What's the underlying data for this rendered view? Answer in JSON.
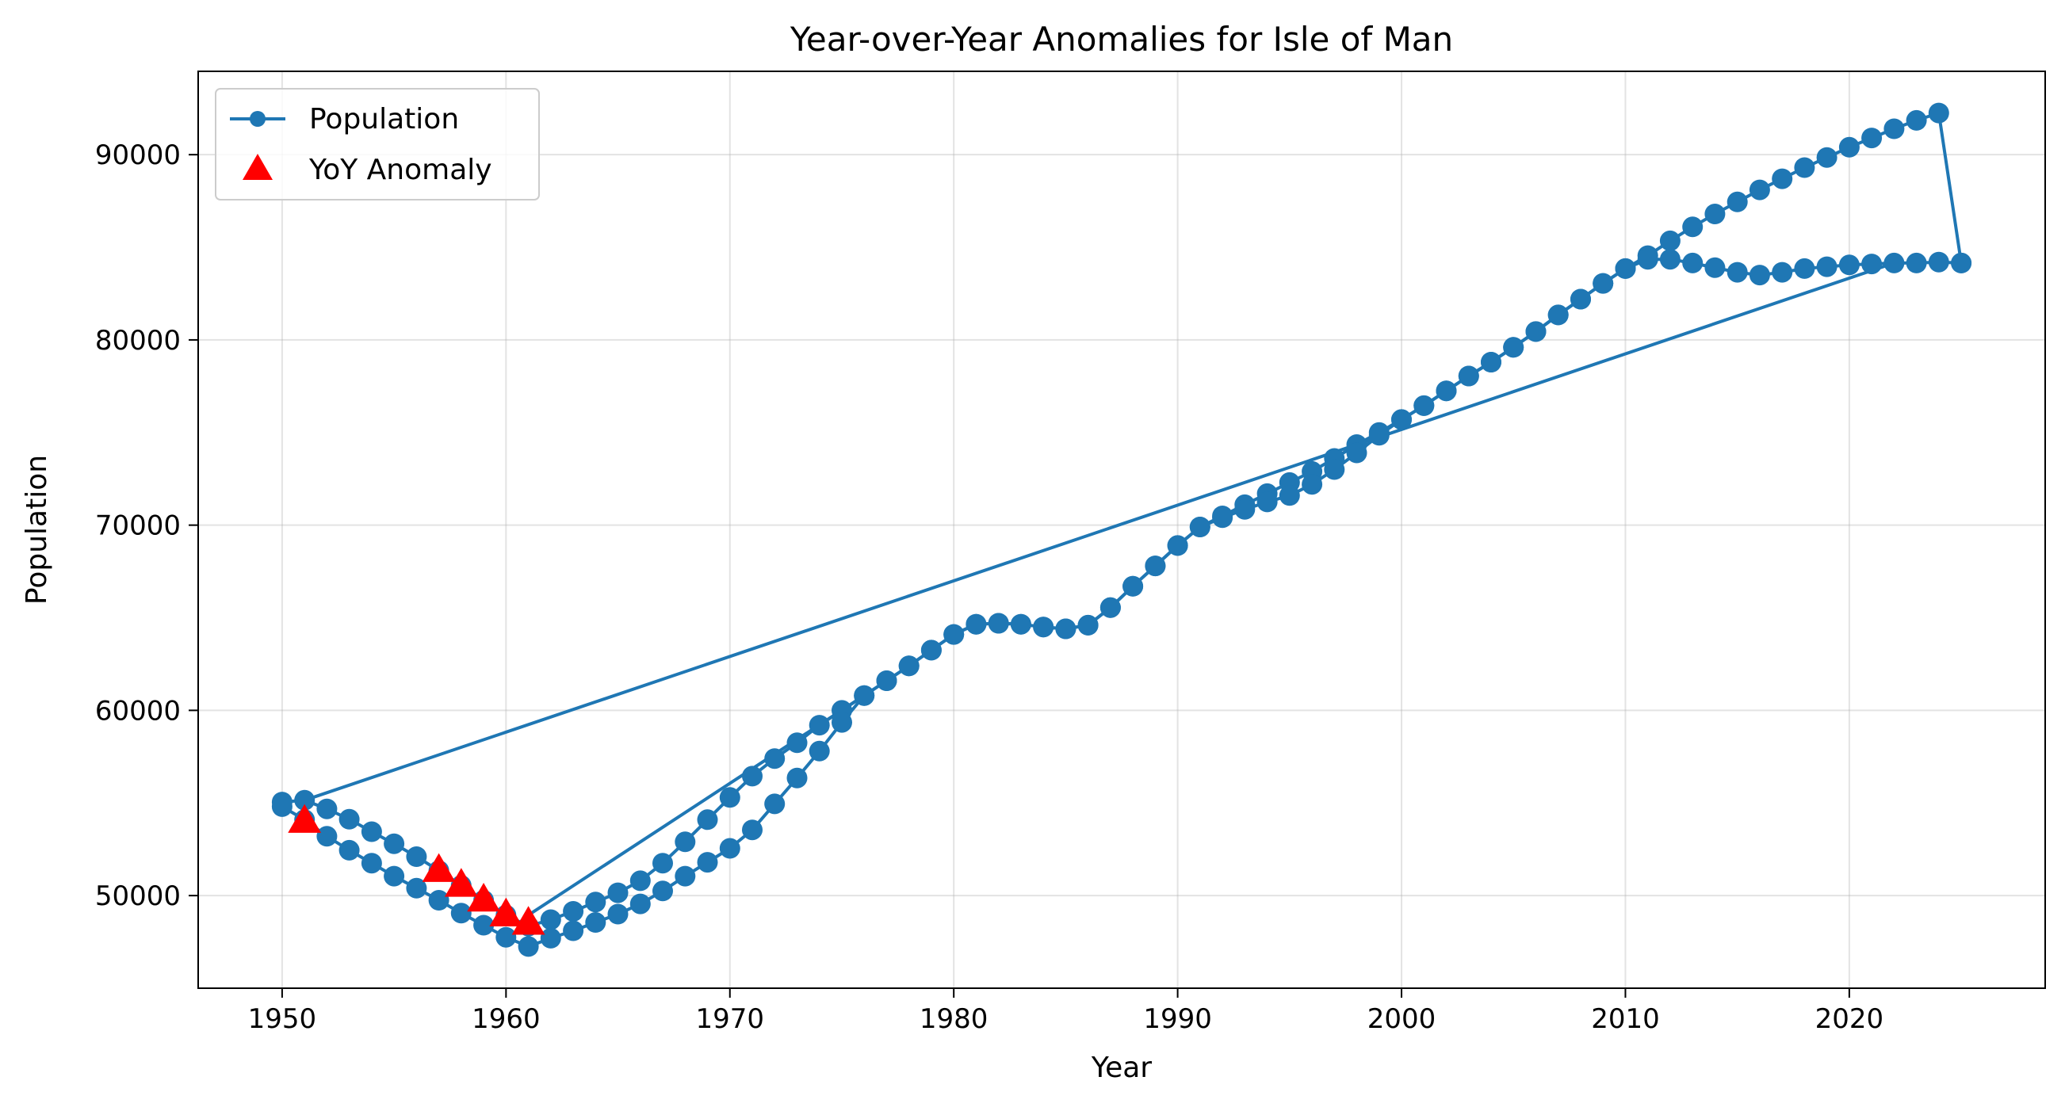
{
  "chart_data": {
    "type": "line",
    "title": "Year-over-Year Anomalies for Isle of Man",
    "xlabel": "Year",
    "ylabel": "Population",
    "xlim": [
      1946.25,
      2028.75
    ],
    "ylim": [
      45000,
      94500
    ],
    "xticks": [
      1950,
      1960,
      1970,
      1980,
      1990,
      2000,
      2010,
      2020
    ],
    "yticks": [
      50000,
      60000,
      70000,
      80000,
      90000
    ],
    "grid": true,
    "legend_position": "top-left",
    "colors": {
      "line": "#1f77b4",
      "anomaly": "#ff0000"
    },
    "series": [
      {
        "name": "Population",
        "marker": "circle",
        "segments": [
          [
            [
              1950,
              55050
            ],
            [
              1951,
              55150
            ],
            [
              1952,
              54680
            ],
            [
              1953,
              54120
            ],
            [
              1954,
              53450
            ],
            [
              1955,
              52800
            ],
            [
              1956,
              52100
            ],
            [
              1957,
              51350
            ],
            [
              1958,
              50550
            ],
            [
              1959,
              49750
            ],
            [
              1960,
              48950
            ],
            [
              1961,
              48350
            ],
            [
              1962,
              48700
            ],
            [
              1963,
              49150
            ],
            [
              1964,
              49650
            ],
            [
              1965,
              50150
            ],
            [
              1966,
              50800
            ],
            [
              1967,
              51750
            ],
            [
              1968,
              52900
            ],
            [
              1969,
              54100
            ],
            [
              1970,
              55300
            ],
            [
              1971,
              56450
            ],
            [
              1972,
              57400
            ],
            [
              1973,
              58250
            ],
            [
              1974,
              59200
            ],
            [
              1975,
              60000
            ],
            [
              1976,
              60800
            ],
            [
              1977,
              61600
            ],
            [
              1978,
              62400
            ],
            [
              1979,
              63250
            ],
            [
              1980,
              64100
            ],
            [
              1981,
              64650
            ],
            [
              1982,
              64700
            ],
            [
              1983,
              64650
            ],
            [
              1984,
              64500
            ],
            [
              1985,
              64400
            ],
            [
              1986,
              64600
            ],
            [
              1987,
              65550
            ],
            [
              1988,
              66700
            ],
            [
              1989,
              67800
            ],
            [
              1990,
              68900
            ],
            [
              1991,
              69900
            ],
            [
              1992,
              70500
            ],
            [
              1993,
              71100
            ],
            [
              1994,
              71700
            ],
            [
              1995,
              72300
            ],
            [
              1996,
              72900
            ],
            [
              1997,
              73600
            ],
            [
              1998,
              74350
            ],
            [
              1999,
              75000
            ],
            [
              2000,
              75700
            ],
            [
              2001,
              76450
            ],
            [
              2002,
              77250
            ],
            [
              2003,
              78050
            ],
            [
              2004,
              78800
            ],
            [
              2005,
              79600
            ],
            [
              2006,
              80450
            ],
            [
              2007,
              81350
            ],
            [
              2008,
              82200
            ],
            [
              2009,
              83050
            ],
            [
              2010,
              83850
            ],
            [
              2011,
              84550
            ],
            [
              2012,
              85350
            ],
            [
              2013,
              86100
            ],
            [
              2014,
              86800
            ],
            [
              2015,
              87450
            ],
            [
              2016,
              88100
            ],
            [
              2017,
              88700
            ],
            [
              2018,
              89300
            ],
            [
              2019,
              89850
            ],
            [
              2020,
              90400
            ],
            [
              2021,
              90900
            ],
            [
              2022,
              91400
            ],
            [
              2023,
              91850
            ],
            [
              2024,
              92250
            ],
            [
              2025,
              84150
            ]
          ],
          [
            [
              1950,
              54800
            ],
            [
              1951,
              54100
            ],
            [
              1952,
              53200
            ],
            [
              1953,
              52450
            ],
            [
              1954,
              51750
            ],
            [
              1955,
              51050
            ],
            [
              1956,
              50400
            ],
            [
              1957,
              49750
            ],
            [
              1958,
              49050
            ],
            [
              1959,
              48400
            ],
            [
              1960,
              47750
            ],
            [
              1961,
              47250
            ],
            [
              1962,
              47700
            ],
            [
              1963,
              48100
            ],
            [
              1964,
              48550
            ],
            [
              1965,
              49000
            ],
            [
              1966,
              49550
            ],
            [
              1967,
              50250
            ],
            [
              1968,
              51050
            ],
            [
              1969,
              51800
            ],
            [
              1970,
              52550
            ],
            [
              1971,
              53550
            ],
            [
              1972,
              54950
            ],
            [
              1973,
              56350
            ],
            [
              1974,
              57800
            ],
            [
              1975,
              59350
            ],
            [
              1976,
              60800
            ],
            [
              1977,
              61600
            ],
            [
              1978,
              62400
            ],
            [
              1979,
              63250
            ],
            [
              1980,
              64100
            ],
            [
              1981,
              64650
            ],
            [
              1982,
              64700
            ],
            [
              1983,
              64650
            ],
            [
              1984,
              64500
            ],
            [
              1985,
              64400
            ],
            [
              1986,
              64600
            ],
            [
              1987,
              65550
            ],
            [
              1988,
              66700
            ],
            [
              1989,
              67800
            ],
            [
              1990,
              68900
            ],
            [
              1991,
              69900
            ],
            [
              1992,
              70400
            ],
            [
              1993,
              70850
            ],
            [
              1994,
              71250
            ],
            [
              1995,
              71600
            ],
            [
              1996,
              72200
            ],
            [
              1997,
              73000
            ],
            [
              1998,
              73900
            ],
            [
              1999,
              74850
            ],
            [
              2000,
              75700
            ],
            [
              2001,
              76450
            ],
            [
              2002,
              77250
            ],
            [
              2003,
              78050
            ],
            [
              2004,
              78800
            ],
            [
              2005,
              79600
            ],
            [
              2006,
              80450
            ],
            [
              2007,
              81350
            ],
            [
              2008,
              82200
            ],
            [
              2009,
              83050
            ],
            [
              2010,
              83850
            ],
            [
              2011,
              84350
            ],
            [
              2012,
              84350
            ],
            [
              2013,
              84150
            ],
            [
              2014,
              83900
            ],
            [
              2015,
              83650
            ],
            [
              2016,
              83500
            ],
            [
              2017,
              83650
            ],
            [
              2018,
              83850
            ],
            [
              2019,
              83950
            ],
            [
              2020,
              84050
            ],
            [
              2021,
              84100
            ],
            [
              2022,
              84150
            ],
            [
              2023,
              84150
            ],
            [
              2024,
              84200
            ],
            [
              2025,
              84150
            ]
          ],
          [
            [
              1951,
              55150
            ],
            [
              2022,
              84150
            ]
          ],
          [
            [
              1961,
              48950
            ],
            [
              1976,
              60800
            ]
          ]
        ]
      },
      {
        "name": "YoY Anomaly",
        "marker": "triangle",
        "points": [
          [
            1951,
            54000
          ],
          [
            1957,
            51350
          ],
          [
            1958,
            50550
          ],
          [
            1959,
            49750
          ],
          [
            1960,
            48950
          ],
          [
            1961,
            48500
          ]
        ]
      }
    ]
  }
}
